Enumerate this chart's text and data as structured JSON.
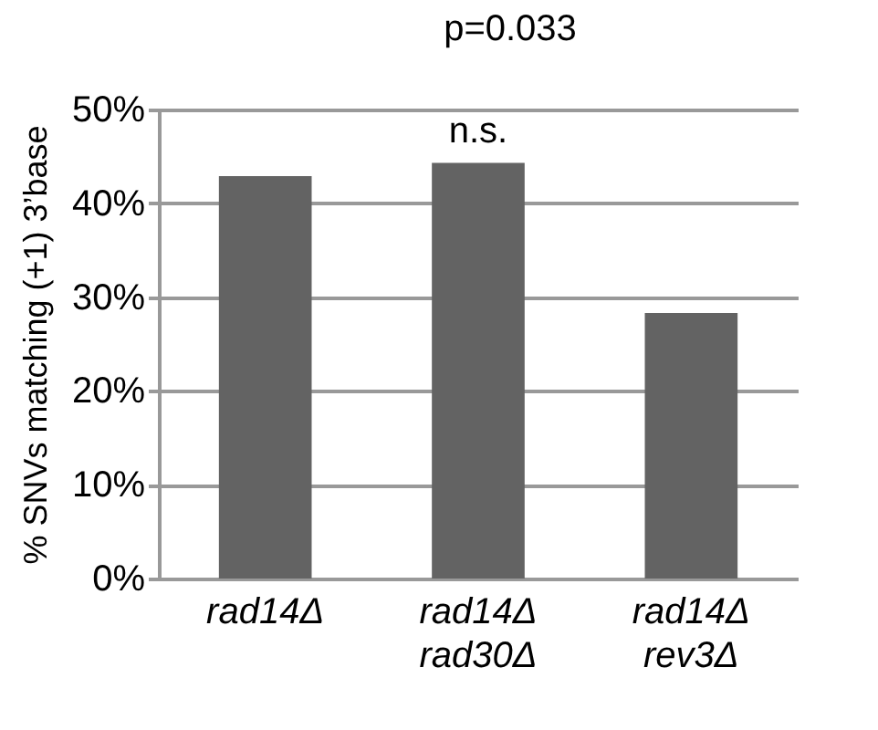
{
  "chart_data": {
    "type": "bar",
    "ylabel": "% SNVs matching (+1) 3’base",
    "categories": [
      "rad14Δ",
      "rad14Δ rad30Δ",
      "rad14Δ rev3Δ"
    ],
    "values": [
      42.9,
      44.3,
      28.3
    ],
    "color": "#636363",
    "ylim": [
      0,
      50
    ],
    "yticks": [
      {
        "value": 0,
        "label": "0%"
      },
      {
        "value": 10,
        "label": "10%"
      },
      {
        "value": 20,
        "label": "20%"
      },
      {
        "value": 30,
        "label": "30%"
      },
      {
        "value": 40,
        "label": "40%"
      },
      {
        "value": 50,
        "label": "50%"
      }
    ],
    "grid": "y",
    "annotations": [
      "p=0.033",
      "n.s."
    ]
  }
}
